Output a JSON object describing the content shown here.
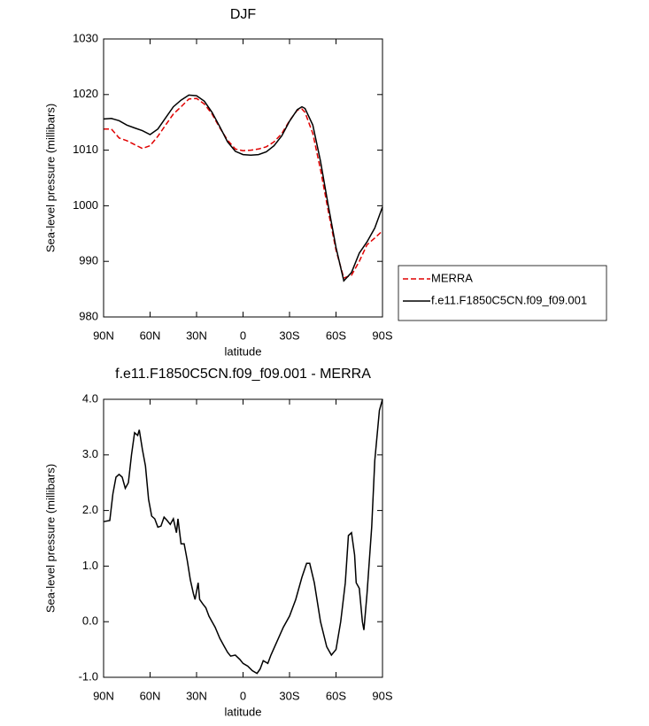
{
  "chart_data": [
    {
      "type": "line",
      "title": "DJF",
      "x_label": "latitude",
      "y_label": "Sea-level pressure (millibars)",
      "x": [
        90,
        85,
        80,
        75,
        70,
        65,
        60,
        55,
        50,
        45,
        40,
        35,
        30,
        25,
        20,
        15,
        10,
        5,
        0,
        -5,
        -10,
        -15,
        -20,
        -25,
        -30,
        -35,
        -38,
        -40,
        -45,
        -50,
        -55,
        -60,
        -65,
        -70,
        -75,
        -80,
        -85,
        -90
      ],
      "series": [
        {
          "name": "MERRA",
          "color": "#e00000",
          "dash": true,
          "values": [
            1013.8,
            1013.8,
            1012.2,
            1011.7,
            1011.0,
            1010.3,
            1010.8,
            1012.5,
            1014.5,
            1016.5,
            1017.8,
            1019.2,
            1019.3,
            1018.3,
            1016.5,
            1014.0,
            1011.8,
            1010.2,
            1009.9,
            1010.0,
            1010.2,
            1010.6,
            1011.5,
            1013.0,
            1015.3,
            1017.2,
            1017.4,
            1016.8,
            1013.0,
            1006.5,
            999.0,
            992.0,
            987.0,
            987.5,
            990.0,
            993.0,
            994.2,
            995.5
          ]
        },
        {
          "name": "f.e11.F1850C5CN.f09_f09.001",
          "color": "#000000",
          "dash": false,
          "values": [
            1015.6,
            1015.7,
            1015.3,
            1014.5,
            1014.0,
            1013.5,
            1012.8,
            1013.8,
            1015.8,
            1017.8,
            1019.0,
            1019.9,
            1019.8,
            1018.8,
            1016.8,
            1014.2,
            1011.5,
            1009.8,
            1009.2,
            1009.1,
            1009.2,
            1009.7,
            1010.8,
            1012.6,
            1015.2,
            1017.3,
            1017.8,
            1017.5,
            1014.5,
            1008.0,
            1000.0,
            992.5,
            986.5,
            988.0,
            991.5,
            993.5,
            996.0,
            999.8
          ]
        }
      ],
      "xlim": [
        90,
        -90
      ],
      "xticks": [
        {
          "value": 90,
          "label": "90N"
        },
        {
          "value": 60,
          "label": "60N"
        },
        {
          "value": 30,
          "label": "30N"
        },
        0,
        {
          "value": -30,
          "label": "30S"
        },
        {
          "value": -60,
          "label": "60S"
        },
        {
          "value": -90,
          "label": "90S"
        }
      ],
      "ylim": [
        980,
        1030
      ],
      "yticks": [
        980,
        990,
        1000,
        1010,
        1020,
        1030
      ],
      "legend": "outside-right"
    },
    {
      "type": "line",
      "title": "f.e11.F1850C5CN.f09_f09.001 - MERRA",
      "x_label": "latitude",
      "y_label": "Sea-level pressure (millibars)",
      "x": [
        90,
        86,
        84,
        82,
        80,
        78,
        76,
        74,
        72,
        70,
        68,
        67,
        65,
        63,
        61,
        59,
        57,
        55,
        53,
        51,
        49,
        47,
        45,
        43,
        42,
        40,
        38,
        36,
        34,
        32,
        31,
        29,
        28,
        26,
        24,
        22,
        20,
        18,
        15,
        12,
        10,
        8,
        5,
        2,
        0,
        -3,
        -6,
        -9,
        -11,
        -13,
        -16,
        -18,
        -22,
        -26,
        -30,
        -34,
        -38,
        -41,
        -43,
        -46,
        -50,
        -54,
        -57,
        -60,
        -63,
        -66,
        -68,
        -70,
        -72,
        -73,
        -75,
        -77,
        -78,
        -80,
        -83,
        -85,
        -88,
        -90
      ],
      "series": [
        {
          "color": "#000000",
          "dash": false,
          "values": [
            1.8,
            1.82,
            2.3,
            2.6,
            2.65,
            2.6,
            2.4,
            2.5,
            3.0,
            3.4,
            3.35,
            3.45,
            3.1,
            2.8,
            2.2,
            1.9,
            1.85,
            1.7,
            1.72,
            1.88,
            1.82,
            1.75,
            1.85,
            1.6,
            1.85,
            1.4,
            1.4,
            1.1,
            0.75,
            0.5,
            0.4,
            0.7,
            0.4,
            0.32,
            0.25,
            0.1,
            0.0,
            -0.1,
            -0.3,
            -0.45,
            -0.55,
            -0.62,
            -0.6,
            -0.68,
            -0.75,
            -0.8,
            -0.88,
            -0.93,
            -0.85,
            -0.7,
            -0.75,
            -0.6,
            -0.35,
            -0.1,
            0.1,
            0.4,
            0.8,
            1.05,
            1.05,
            0.7,
            0.0,
            -0.45,
            -0.6,
            -0.5,
            0.0,
            0.7,
            1.55,
            1.6,
            1.2,
            0.7,
            0.6,
            0.0,
            -0.15,
            0.5,
            1.7,
            2.9,
            3.8,
            4.0
          ]
        }
      ],
      "xlim": [
        90,
        -90
      ],
      "xticks": [
        {
          "value": 90,
          "label": "90N"
        },
        {
          "value": 60,
          "label": "60N"
        },
        {
          "value": 30,
          "label": "30N"
        },
        0,
        {
          "value": -30,
          "label": "30S"
        },
        {
          "value": -60,
          "label": "60S"
        },
        {
          "value": -90,
          "label": "90S"
        }
      ],
      "ylim": [
        -1,
        4
      ],
      "yticks": [
        {
          "value": -1,
          "label": "-1.0"
        },
        {
          "value": 0,
          "label": "0.0"
        },
        {
          "value": 1,
          "label": "1.0"
        },
        {
          "value": 2,
          "label": "2.0"
        },
        {
          "value": 3,
          "label": "3.0"
        },
        {
          "value": 4,
          "label": "4.0"
        }
      ]
    }
  ]
}
